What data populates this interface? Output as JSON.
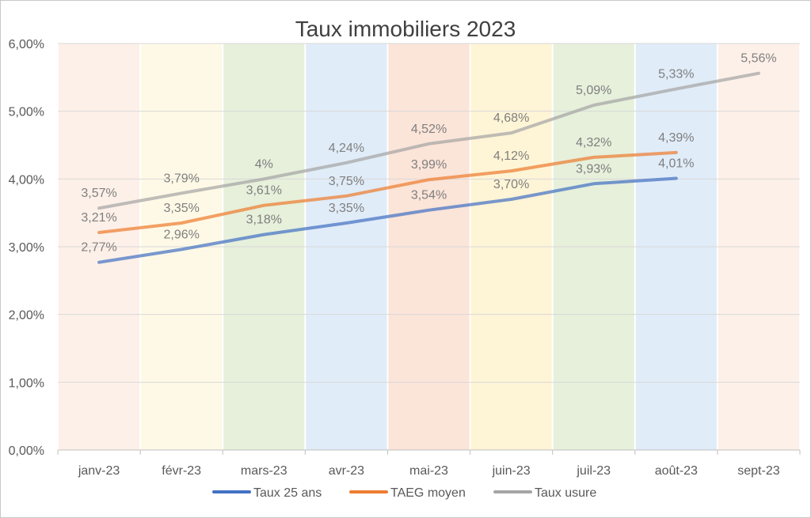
{
  "chart_data": {
    "type": "line",
    "title": "Taux immobiliers 2023",
    "categories": [
      "janv-23",
      "févr-23",
      "mars-23",
      "avr-23",
      "mai-23",
      "juin-23",
      "juil-23",
      "août-23",
      "sept-23"
    ],
    "y_ticks": [
      "0,00%",
      "1,00%",
      "2,00%",
      "3,00%",
      "4,00%",
      "5,00%",
      "6,00%"
    ],
    "ylim": [
      0,
      6
    ],
    "grid": true,
    "legend_position": "bottom",
    "band_colors": [
      "#fdf0e8",
      "#fef9e6",
      "#e6f0db",
      "#e0ecf8",
      "#fbe4d8",
      "#fef4d6",
      "#e6f0db",
      "#e0ecf8",
      "#fdf0e8"
    ],
    "series": [
      {
        "name": "Taux 25 ans",
        "color": "#4472c4",
        "values": [
          2.77,
          2.96,
          3.18,
          3.35,
          3.54,
          3.7,
          3.93,
          4.01,
          null
        ],
        "labels": [
          "2,77%",
          "2,96%",
          "3,18%",
          "3,35%",
          "3,54%",
          "3,70%",
          "3,93%",
          "4,01%",
          ""
        ]
      },
      {
        "name": "TAEG moyen",
        "color": "#ed7d31",
        "values": [
          3.21,
          3.35,
          3.61,
          3.75,
          3.99,
          4.12,
          4.32,
          4.39,
          null
        ],
        "labels": [
          "3,21%",
          "3,35%",
          "3,61%",
          "3,75%",
          "3,99%",
          "4,12%",
          "4,32%",
          "4,39%",
          ""
        ]
      },
      {
        "name": "Taux usure",
        "color": "#a5a5a5",
        "values": [
          3.57,
          3.79,
          4.0,
          4.24,
          4.52,
          4.68,
          5.09,
          5.33,
          5.56
        ],
        "labels": [
          "3,57%",
          "3,79%",
          "4%",
          "4,24%",
          "4,52%",
          "4,68%",
          "5,09%",
          "5,33%",
          "5,56%"
        ]
      }
    ]
  }
}
